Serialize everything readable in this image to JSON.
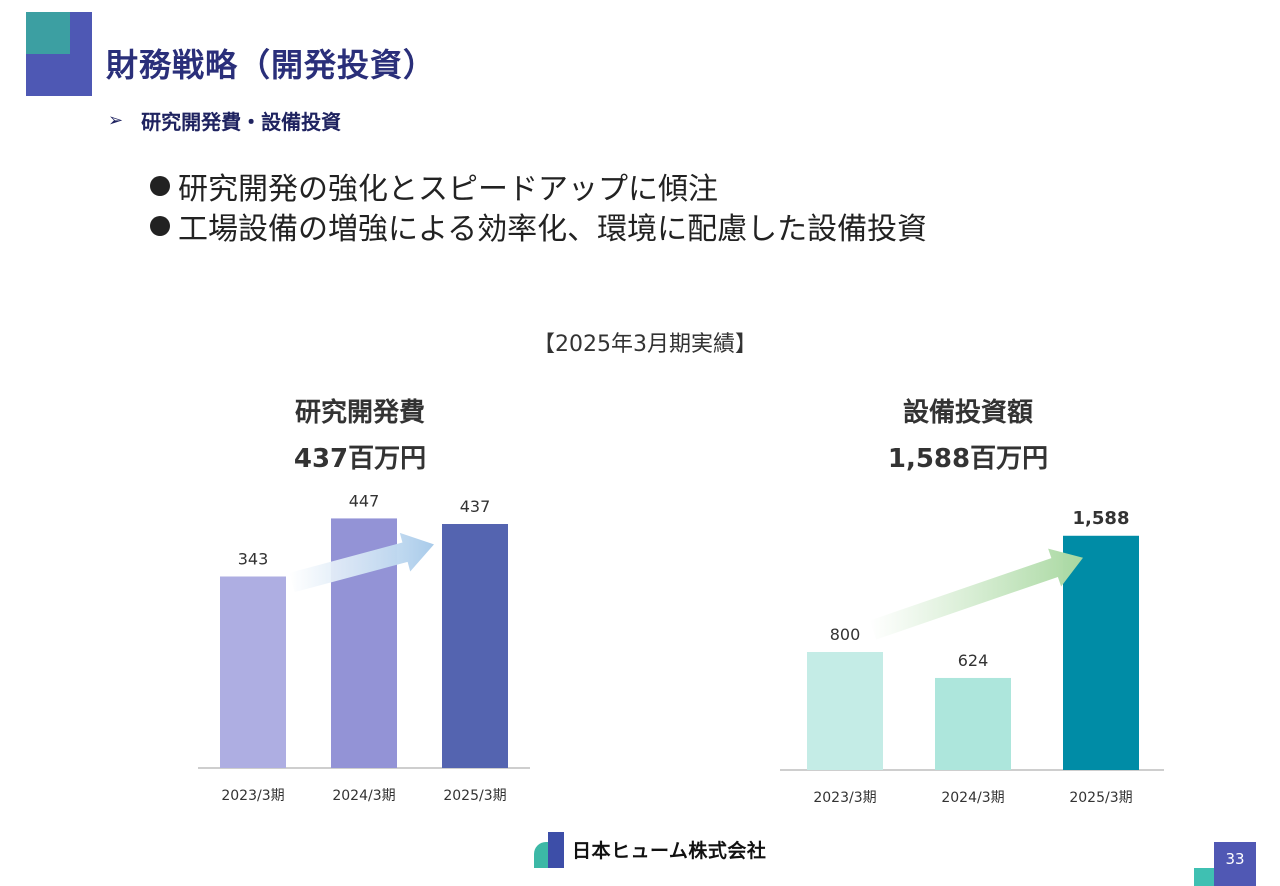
{
  "page": {
    "title": "財務戦略（開発投資）",
    "subheading": "研究開発費・設備投資",
    "subheading_marker": "➢",
    "bullets": [
      "研究開発の強化とスピードアップに傾注",
      "工場設備の増強による効率化、環境に配慮した設備投資"
    ],
    "period_label": "【2025年3月期実績】",
    "company_name": "日本ヒューム株式会社",
    "page_number": "33"
  },
  "chart_data": [
    {
      "type": "bar",
      "title": "研究開発費",
      "subtitle": "437百万円",
      "categories": [
        "2023/3期",
        "2024/3期",
        "2025/3期"
      ],
      "values": [
        343,
        447,
        437
      ],
      "value_labels": [
        "343",
        "447",
        "437"
      ],
      "ylim": [
        0,
        480
      ],
      "colors": [
        "#aeaee2",
        "#9393d6",
        "#5464b0"
      ],
      "trend_arrow": true,
      "arrow_color": "#a9cbea"
    },
    {
      "type": "bar",
      "title": "設備投資額",
      "subtitle": "1,588百万円",
      "categories": [
        "2023/3期",
        "2024/3期",
        "2025/3期"
      ],
      "values": [
        800,
        624,
        1588
      ],
      "value_labels": [
        "800",
        "624",
        "1,588"
      ],
      "ylim": [
        0,
        1600
      ],
      "colors": [
        "#c4ece6",
        "#ade6dc",
        "#008ca6"
      ],
      "trend_arrow": true,
      "arrow_color": "#a8d8a0"
    }
  ]
}
